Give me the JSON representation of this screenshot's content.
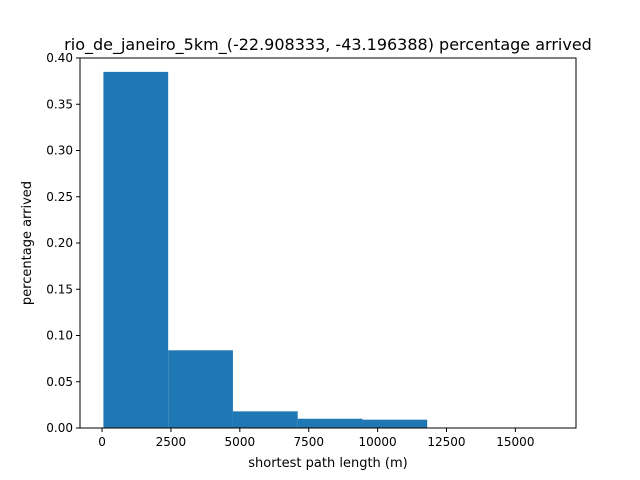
{
  "chart_data": {
    "type": "bar",
    "title": "rio_de_janeiro_5km_(-22.908333, -43.196388) percentage arrived",
    "xlabel": "shortest path length (m)",
    "ylabel": "percentage arrived",
    "xlim": [
      -800,
      17200
    ],
    "ylim": [
      0,
      0.4
    ],
    "xticks": [
      0,
      2500,
      5000,
      7500,
      10000,
      12500,
      15000
    ],
    "yticks": [
      0.0,
      0.05,
      0.1,
      0.15,
      0.2,
      0.25,
      0.3,
      0.35,
      0.4
    ],
    "xtick_labels": [
      "0",
      "2500",
      "5000",
      "7500",
      "10000",
      "12500",
      "15000"
    ],
    "ytick_labels": [
      "0.00",
      "0.05",
      "0.10",
      "0.15",
      "0.20",
      "0.25",
      "0.30",
      "0.35",
      "0.40"
    ],
    "bins": [
      {
        "start": 50,
        "end": 2400,
        "value": 0.385
      },
      {
        "start": 2400,
        "end": 4750,
        "value": 0.084
      },
      {
        "start": 4750,
        "end": 7100,
        "value": 0.018
      },
      {
        "start": 7100,
        "end": 9450,
        "value": 0.01
      },
      {
        "start": 9450,
        "end": 11800,
        "value": 0.009
      },
      {
        "start": 11800,
        "end": 14150,
        "value": 0.0
      },
      {
        "start": 14150,
        "end": 16500,
        "value": 0.0
      }
    ],
    "grid": false,
    "bar_color": "#1f77b4"
  }
}
